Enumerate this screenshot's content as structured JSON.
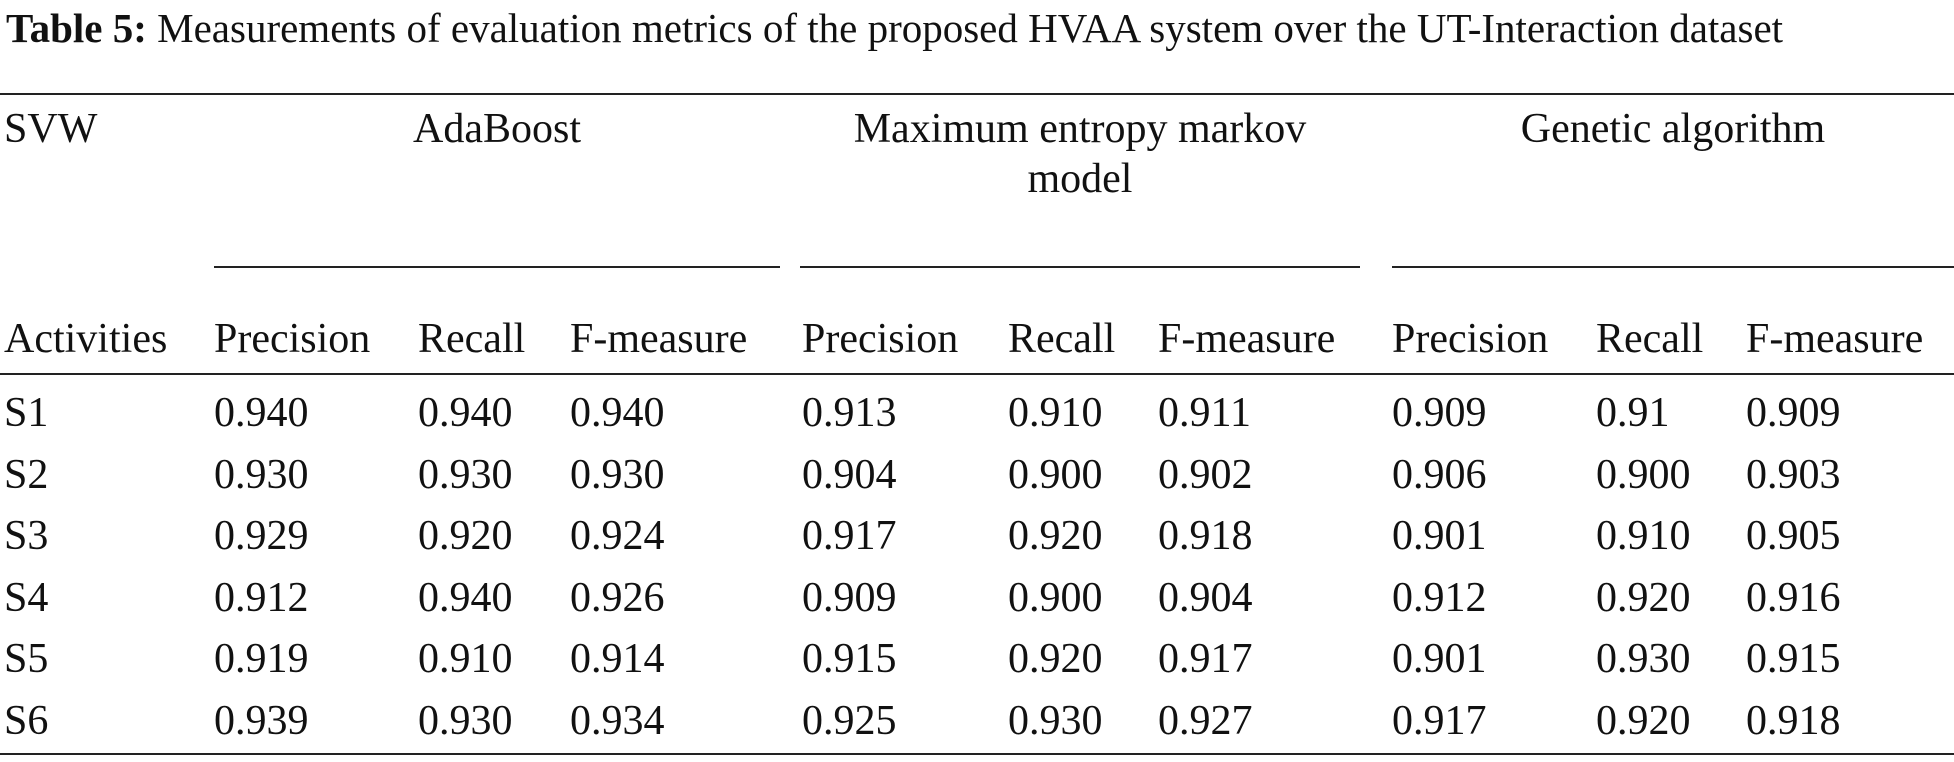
{
  "caption": {
    "label": "Table 5:",
    "text": " Measurements of evaluation metrics of the proposed HVAA system over the UT-Interaction dataset"
  },
  "table": {
    "corner_top": "SVW",
    "corner_bottom": "Activities",
    "groups": [
      {
        "name": "AdaBoost"
      },
      {
        "name": "Maximum entropy markov model"
      },
      {
        "name": "Genetic algorithm"
      }
    ],
    "subheaders": [
      "Precision",
      "Recall",
      "F-measure",
      "Precision",
      "Recall",
      "F-measure",
      "Precision",
      "Recall",
      "F-measure"
    ],
    "rows": [
      {
        "activity": "S1",
        "values": [
          "0.940",
          "0.940",
          "0.940",
          "0.913",
          "0.910",
          "0.911",
          "0.909",
          "0.91",
          "0.909"
        ]
      },
      {
        "activity": "S2",
        "values": [
          "0.930",
          "0.930",
          "0.930",
          "0.904",
          "0.900",
          "0.902",
          "0.906",
          "0.900",
          "0.903"
        ]
      },
      {
        "activity": "S3",
        "values": [
          "0.929",
          "0.920",
          "0.924",
          "0.917",
          "0.920",
          "0.918",
          "0.901",
          "0.910",
          "0.905"
        ]
      },
      {
        "activity": "S4",
        "values": [
          "0.912",
          "0.940",
          "0.926",
          "0.909",
          "0.900",
          "0.904",
          "0.912",
          "0.920",
          "0.916"
        ]
      },
      {
        "activity": "S5",
        "values": [
          "0.919",
          "0.910",
          "0.914",
          "0.915",
          "0.920",
          "0.917",
          "0.901",
          "0.930",
          "0.915"
        ]
      },
      {
        "activity": "S6",
        "values": [
          "0.939",
          "0.930",
          "0.934",
          "0.925",
          "0.930",
          "0.927",
          "0.917",
          "0.920",
          "0.918"
        ]
      }
    ]
  }
}
